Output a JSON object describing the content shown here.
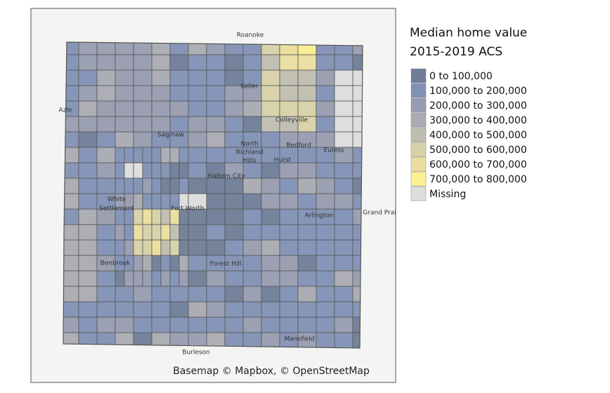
{
  "legend": {
    "title": [
      "Median home value",
      "2015-2019 ACS"
    ],
    "items": [
      {
        "label": "0 to 100,000",
        "color": "#6f7d98"
      },
      {
        "label": "100,000 to 200,000",
        "color": "#8191b5"
      },
      {
        "label": "200,000 to 300,000",
        "color": "#979cb0"
      },
      {
        "label": "300,000 to 400,000",
        "color": "#aaabb2"
      },
      {
        "label": "400,000 to 500,000",
        "color": "#c0beb0"
      },
      {
        "label": "500,000 to 600,000",
        "color": "#d8d2a8"
      },
      {
        "label": "600,000 to 700,000",
        "color": "#eadf9e"
      },
      {
        "label": "700,000 to 800,000",
        "color": "#fbef91"
      },
      {
        "label": "Missing",
        "color": "#dddddd"
      }
    ]
  },
  "places": [
    "Roanoke",
    "Keller",
    "Azle",
    "Colleyville",
    "Saginaw",
    "North",
    "Richland",
    "Hills",
    "Bedford",
    "Euless",
    "Hurst",
    "Haltom City",
    "White",
    "Settlement",
    "Fort Worth",
    "Arlington",
    "Grand Prai",
    "Benbrook",
    "Forest Hill",
    "Mansfield",
    "Burleson"
  ],
  "attribution": "Basemap © Mapbox, © OpenStreetMap"
}
